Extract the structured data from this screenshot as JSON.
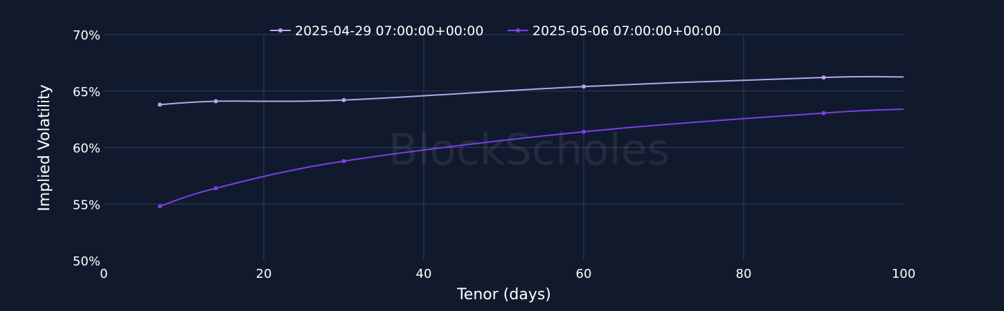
{
  "watermark": "BlockScholes",
  "chart_data": {
    "type": "line",
    "xlabel": "Tenor (days)",
    "ylabel": "Implied Volatility",
    "xlim": [
      0,
      100
    ],
    "ylim": [
      50,
      70
    ],
    "x_ticks": [
      0,
      20,
      40,
      60,
      80,
      100
    ],
    "y_ticks": [
      50,
      55,
      60,
      65,
      70
    ],
    "y_tick_labels": [
      "50%",
      "55%",
      "60%",
      "65%",
      "70%"
    ],
    "grid": true,
    "legend_position": "top-center",
    "series": [
      {
        "name": "2025-04-29 07:00:00+00:00",
        "color": "#b8a6f2",
        "points": [
          [
            7,
            63.8
          ],
          [
            14,
            64.1
          ],
          [
            30,
            64.2
          ],
          [
            60,
            65.4
          ],
          [
            90,
            66.2
          ]
        ],
        "end_value": [
          100,
          66.25
        ]
      },
      {
        "name": "2025-05-06 07:00:00+00:00",
        "color": "#7d3fe8",
        "points": [
          [
            7,
            54.8
          ],
          [
            14,
            56.4
          ],
          [
            30,
            58.8
          ],
          [
            60,
            61.4
          ],
          [
            90,
            63.05
          ]
        ],
        "end_value": [
          100,
          63.4
        ]
      }
    ]
  }
}
